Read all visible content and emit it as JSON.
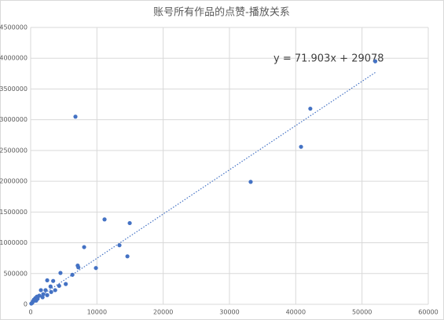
{
  "chart_data": {
    "type": "scatter",
    "title": "账号所有作品的点赞-播放关系",
    "series": [
      {
        "color": "#4472c4",
        "x": [
          52000,
          42200,
          40800,
          33200,
          6760,
          11150,
          14950,
          13400,
          14600,
          8070,
          7100,
          7200,
          9850,
          6300,
          4500,
          5300,
          2500,
          3400,
          3000,
          3700,
          4300,
          2250,
          1900,
          1300,
          1550,
          700,
          500,
          350,
          250,
          950,
          100,
          600,
          1050,
          830,
          1800,
          2500,
          3100
        ],
        "values": [
          3950000,
          3180000,
          2560000,
          1990000,
          3050000,
          1380000,
          1320000,
          960000,
          780000,
          930000,
          630000,
          600000,
          590000,
          480000,
          510000,
          330000,
          390000,
          380000,
          290000,
          230000,
          300000,
          230000,
          165000,
          140000,
          230000,
          100000,
          75000,
          50000,
          25000,
          125000,
          12000,
          60000,
          90000,
          60000,
          115000,
          150000,
          200000
        ]
      }
    ],
    "trendline": {
      "label": "y = 71.903x + 29078",
      "slope": 71.903,
      "intercept": 29078
    },
    "xlim": [
      0,
      60000
    ],
    "xticks": [
      0,
      10000,
      20000,
      30000,
      40000,
      50000,
      60000
    ],
    "ylim": [
      0,
      4500000
    ],
    "yticks": [
      0,
      500000,
      1000000,
      1500000,
      2000000,
      2500000,
      3000000,
      3500000,
      4000000,
      4500000
    ],
    "grid": true
  }
}
